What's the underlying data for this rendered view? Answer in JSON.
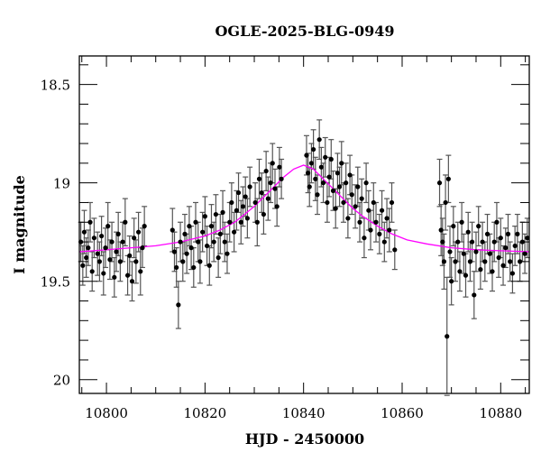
{
  "chart_data": {
    "type": "scatter",
    "title": "OGLE-2025-BLG-0949",
    "xlabel": "HJD - 2450000",
    "ylabel": "I magnitude",
    "xlim": [
      10794.5,
      10885.8
    ],
    "ylim": [
      20.07,
      18.355
    ],
    "y_inverted": true,
    "grid": false,
    "x_ticks": [
      10800,
      10820,
      10840,
      10860,
      10880
    ],
    "y_ticks": [
      18.5,
      19,
      19.5,
      20
    ],
    "x_tick_labels": [
      "10800",
      "10820",
      "10840",
      "10860",
      "10880"
    ],
    "y_tick_labels": [
      "18.5",
      "19",
      "19.5",
      "20"
    ],
    "colors": {
      "points": "#000000",
      "errorbars": "#555555",
      "model": "#ff00ff"
    },
    "model": [
      [
        10794.5,
        19.35
      ],
      [
        10800,
        19.34
      ],
      [
        10805,
        19.33
      ],
      [
        10810,
        19.32
      ],
      [
        10815,
        19.3
      ],
      [
        10820,
        19.27
      ],
      [
        10823,
        19.24
      ],
      [
        10826,
        19.2
      ],
      [
        10828,
        19.16
      ],
      [
        10830,
        19.12
      ],
      [
        10832,
        19.07
      ],
      [
        10834,
        19.02
      ],
      [
        10836,
        18.97
      ],
      [
        10838,
        18.93
      ],
      [
        10840,
        18.91
      ],
      [
        10842,
        18.93
      ],
      [
        10844,
        18.98
      ],
      [
        10846,
        19.03
      ],
      [
        10848,
        19.08
      ],
      [
        10850,
        19.13
      ],
      [
        10852,
        19.17
      ],
      [
        10855,
        19.22
      ],
      [
        10858,
        19.26
      ],
      [
        10861,
        19.29
      ],
      [
        10865,
        19.31
      ],
      [
        10870,
        19.33
      ],
      [
        10875,
        19.34
      ],
      [
        10880,
        19.345
      ],
      [
        10885.8,
        19.35
      ]
    ],
    "points": [
      [
        10794.8,
        19.3,
        0.1
      ],
      [
        10795.2,
        19.42,
        0.1
      ],
      [
        10795.5,
        19.25,
        0.11
      ],
      [
        10795.9,
        19.38,
        0.1
      ],
      [
        10796.3,
        19.33,
        0.09
      ],
      [
        10796.7,
        19.2,
        0.1
      ],
      [
        10797.1,
        19.45,
        0.1
      ],
      [
        10797.5,
        19.28,
        0.1
      ],
      [
        10798.2,
        19.36,
        0.11
      ],
      [
        10798.6,
        19.4,
        0.1
      ],
      [
        10799,
        19.27,
        0.1
      ],
      [
        10799.4,
        19.46,
        0.11
      ],
      [
        10799.8,
        19.33,
        0.1
      ],
      [
        10800.3,
        19.22,
        0.12
      ],
      [
        10800.7,
        19.39,
        0.1
      ],
      [
        10801.1,
        19.3,
        0.1
      ],
      [
        10801.6,
        19.48,
        0.1
      ],
      [
        10802,
        19.35,
        0.1
      ],
      [
        10802.4,
        19.26,
        0.11
      ],
      [
        10802.8,
        19.4,
        0.1
      ],
      [
        10803.3,
        19.3,
        0.1
      ],
      [
        10803.8,
        19.2,
        0.12
      ],
      [
        10804.3,
        19.47,
        0.1
      ],
      [
        10804.7,
        19.37,
        0.1
      ],
      [
        10805.2,
        19.5,
        0.1
      ],
      [
        10805.6,
        19.28,
        0.1
      ],
      [
        10806,
        19.4,
        0.11
      ],
      [
        10806.5,
        19.25,
        0.1
      ],
      [
        10806.9,
        19.45,
        0.12
      ],
      [
        10807.3,
        19.33,
        0.1
      ],
      [
        10807.7,
        19.22,
        0.1
      ],
      [
        10813.4,
        19.24,
        0.11
      ],
      [
        10813.8,
        19.35,
        0.1
      ],
      [
        10814.2,
        19.43,
        0.1
      ],
      [
        10814.6,
        19.62,
        0.12
      ],
      [
        10815,
        19.3,
        0.1
      ],
      [
        10815.5,
        19.4,
        0.1
      ],
      [
        10815.9,
        19.26,
        0.1
      ],
      [
        10816.3,
        19.36,
        0.1
      ],
      [
        10816.8,
        19.22,
        0.1
      ],
      [
        10817.2,
        19.33,
        0.11
      ],
      [
        10817.7,
        19.43,
        0.1
      ],
      [
        10818.1,
        19.2,
        0.1
      ],
      [
        10818.6,
        19.3,
        0.1
      ],
      [
        10819,
        19.4,
        0.11
      ],
      [
        10819.5,
        19.25,
        0.1
      ],
      [
        10820,
        19.17,
        0.1
      ],
      [
        10820.4,
        19.32,
        0.1
      ],
      [
        10820.9,
        19.42,
        0.1
      ],
      [
        10821.3,
        19.22,
        0.11
      ],
      [
        10821.8,
        19.3,
        0.1
      ],
      [
        10822.2,
        19.16,
        0.1
      ],
      [
        10822.7,
        19.38,
        0.1
      ],
      [
        10823.1,
        19.26,
        0.1
      ],
      [
        10823.6,
        19.15,
        0.11
      ],
      [
        10824,
        19.3,
        0.1
      ],
      [
        10824.5,
        19.36,
        0.1
      ],
      [
        10825,
        19.2,
        0.1
      ],
      [
        10825.4,
        19.1,
        0.1
      ],
      [
        10825.9,
        19.25,
        0.1
      ],
      [
        10826.4,
        19.14,
        0.1
      ],
      [
        10826.8,
        19.05,
        0.1
      ],
      [
        10827.3,
        19.2,
        0.11
      ],
      [
        10827.7,
        19.12,
        0.1
      ],
      [
        10828.2,
        19.07,
        0.1
      ],
      [
        10828.6,
        19.18,
        0.1
      ],
      [
        10829.1,
        19.02,
        0.1
      ],
      [
        10830.2,
        19.1,
        0.1
      ],
      [
        10830.6,
        19.2,
        0.12
      ],
      [
        10831,
        18.98,
        0.1
      ],
      [
        10831.5,
        19.05,
        0.1
      ],
      [
        10831.9,
        19.16,
        0.1
      ],
      [
        10832.4,
        18.94,
        0.1
      ],
      [
        10832.8,
        19.08,
        0.11
      ],
      [
        10833.3,
        19.0,
        0.1
      ],
      [
        10833.7,
        18.9,
        0.1
      ],
      [
        10834.2,
        19.03,
        0.1
      ],
      [
        10834.6,
        19.12,
        0.1
      ],
      [
        10835.1,
        18.92,
        0.1
      ],
      [
        10835.5,
        18.98,
        0.1
      ],
      [
        10840.6,
        18.86,
        0.1
      ],
      [
        10840.9,
        18.95,
        0.1
      ],
      [
        10841.2,
        19.02,
        0.1
      ],
      [
        10841.6,
        18.9,
        0.1
      ],
      [
        10842,
        18.83,
        0.1
      ],
      [
        10842.4,
        18.98,
        0.11
      ],
      [
        10842.8,
        19.06,
        0.1
      ],
      [
        10843.2,
        18.78,
        0.1
      ],
      [
        10843.6,
        18.92,
        0.1
      ],
      [
        10844,
        19.0,
        0.1
      ],
      [
        10844.4,
        18.87,
        0.1
      ],
      [
        10844.8,
        19.1,
        0.1
      ],
      [
        10845.2,
        18.97,
        0.1
      ],
      [
        10845.6,
        18.88,
        0.1
      ],
      [
        10846,
        19.04,
        0.1
      ],
      [
        10846.5,
        19.13,
        0.1
      ],
      [
        10846.9,
        18.95,
        0.1
      ],
      [
        10847.3,
        19.02,
        0.1
      ],
      [
        10847.7,
        18.9,
        0.11
      ],
      [
        10848.1,
        19.1,
        0.1
      ],
      [
        10848.6,
        19.0,
        0.1
      ],
      [
        10849,
        19.18,
        0.1
      ],
      [
        10849.4,
        18.96,
        0.1
      ],
      [
        10849.8,
        19.06,
        0.1
      ],
      [
        10850.5,
        19.12,
        0.11
      ],
      [
        10851,
        19.02,
        0.1
      ],
      [
        10851.4,
        19.2,
        0.1
      ],
      [
        10851.8,
        19.08,
        0.1
      ],
      [
        10852.3,
        19.28,
        0.1
      ],
      [
        10852.7,
        19.0,
        0.1
      ],
      [
        10853.2,
        19.14,
        0.1
      ],
      [
        10853.6,
        19.24,
        0.1
      ],
      [
        10854.2,
        19.1,
        0.1
      ],
      [
        10854.7,
        19.2,
        0.1
      ],
      [
        10855.4,
        19.26,
        0.1
      ],
      [
        10855.9,
        19.14,
        0.1
      ],
      [
        10856.4,
        19.3,
        0.1
      ],
      [
        10856.9,
        19.18,
        0.1
      ],
      [
        10857.4,
        19.24,
        0.11
      ],
      [
        10857.9,
        19.1,
        0.1
      ],
      [
        10858.5,
        19.34,
        0.1
      ],
      [
        10867.6,
        19.0,
        0.12
      ],
      [
        10867.9,
        19.24,
        0.13
      ],
      [
        10868.2,
        19.3,
        0.12
      ],
      [
        10868.5,
        19.4,
        0.14
      ],
      [
        10868.8,
        19.1,
        0.14
      ],
      [
        10869.1,
        19.78,
        0.3
      ],
      [
        10869.4,
        18.98,
        0.12
      ],
      [
        10869.7,
        19.35,
        0.13
      ],
      [
        10870,
        19.5,
        0.12
      ],
      [
        10870.4,
        19.22,
        0.1
      ],
      [
        10870.8,
        19.4,
        0.1
      ],
      [
        10871.3,
        19.3,
        0.1
      ],
      [
        10871.7,
        19.45,
        0.1
      ],
      [
        10872.1,
        19.2,
        0.1
      ],
      [
        10872.5,
        19.36,
        0.1
      ],
      [
        10872.9,
        19.47,
        0.11
      ],
      [
        10873.4,
        19.25,
        0.1
      ],
      [
        10873.8,
        19.4,
        0.1
      ],
      [
        10874.2,
        19.3,
        0.1
      ],
      [
        10874.6,
        19.57,
        0.12
      ],
      [
        10875,
        19.35,
        0.1
      ],
      [
        10875.5,
        19.22,
        0.1
      ],
      [
        10875.9,
        19.44,
        0.1
      ],
      [
        10876.3,
        19.3,
        0.1
      ],
      [
        10876.8,
        19.4,
        0.1
      ],
      [
        10877.3,
        19.26,
        0.1
      ],
      [
        10877.8,
        19.36,
        0.1
      ],
      [
        10878.3,
        19.45,
        0.1
      ],
      [
        10878.7,
        19.3,
        0.1
      ],
      [
        10879.2,
        19.2,
        0.1
      ],
      [
        10879.6,
        19.38,
        0.1
      ],
      [
        10880,
        19.28,
        0.1
      ],
      [
        10880.5,
        19.42,
        0.1
      ],
      [
        10881,
        19.33,
        0.1
      ],
      [
        10881.5,
        19.26,
        0.1
      ],
      [
        10881.9,
        19.4,
        0.1
      ],
      [
        10882.4,
        19.46,
        0.1
      ],
      [
        10882.9,
        19.32,
        0.1
      ],
      [
        10883.4,
        19.26,
        0.1
      ],
      [
        10883.9,
        19.4,
        0.1
      ],
      [
        10884.4,
        19.3,
        0.1
      ],
      [
        10884.9,
        19.36,
        0.1
      ],
      [
        10885.4,
        19.28,
        0.1
      ]
    ]
  }
}
